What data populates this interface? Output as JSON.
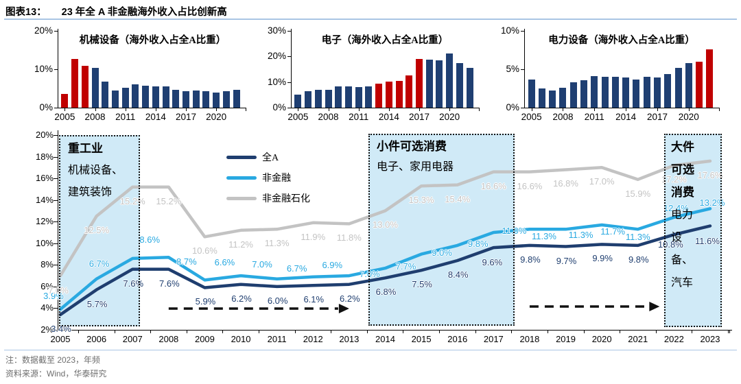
{
  "header": {
    "tag": "图表13：",
    "title": "23 年全 A 非金融海外收入占比创新高"
  },
  "footer": {
    "note": "注：数据截至 2023，年频",
    "source": "资料来源：Wind，华泰研究"
  },
  "colors": {
    "bar": "#1f3f72",
    "highlight": "#c00000",
    "line_allA": "#1f3e6f",
    "line_nonfin": "#29a9e1",
    "line_nonfin_petro": "#c3c3c3",
    "rule": "#a9c5e4",
    "box_fill": "#cfeaf7",
    "arrow": "#111111"
  },
  "chart_data": [
    {
      "id": "machinery",
      "type": "bar",
      "title": "机械设备（海外收入占全A比重）",
      "years": [
        2005,
        2006,
        2007,
        2008,
        2009,
        2010,
        2011,
        2012,
        2013,
        2014,
        2015,
        2016,
        2017,
        2018,
        2019,
        2020,
        2021,
        2022
      ],
      "values": [
        3.5,
        12.7,
        10.9,
        10.3,
        6.8,
        4.4,
        5.2,
        6.0,
        5.7,
        5.6,
        5.5,
        4.6,
        4.2,
        4.5,
        4.3,
        3.9,
        4.2,
        4.7
      ],
      "highlight_years": [
        2005,
        2006,
        2007
      ],
      "ylim": [
        0,
        20
      ],
      "yticks": [
        0,
        10,
        20
      ],
      "xticks": [
        2005,
        2008,
        2011,
        2014,
        2017,
        2020
      ]
    },
    {
      "id": "electronics",
      "type": "bar",
      "title": "电子（海外收入占全A比重）",
      "years": [
        2005,
        2006,
        2007,
        2008,
        2009,
        2010,
        2011,
        2012,
        2013,
        2014,
        2015,
        2016,
        2017,
        2018,
        2019,
        2020,
        2021,
        2022
      ],
      "values": [
        5.0,
        6.3,
        7.0,
        7.0,
        8.2,
        8.4,
        8.0,
        8.4,
        9.4,
        10.2,
        10.5,
        12.5,
        18.9,
        18.7,
        18.4,
        21.2,
        17.4,
        15.5
      ],
      "highlight_years": [
        2013,
        2014,
        2015,
        2016,
        2017
      ],
      "ylim": [
        0,
        30
      ],
      "yticks": [
        0,
        10,
        20,
        30
      ],
      "xticks": [
        2005,
        2008,
        2011,
        2014,
        2017,
        2020
      ]
    },
    {
      "id": "power-equipment",
      "type": "bar",
      "title": "电力设备（海外收入占全A比重）",
      "years": [
        2005,
        2006,
        2007,
        2008,
        2009,
        2010,
        2011,
        2012,
        2013,
        2014,
        2015,
        2016,
        2017,
        2018,
        2019,
        2020,
        2021,
        2022
      ],
      "values": [
        3.7,
        2.5,
        2.2,
        2.6,
        3.3,
        3.6,
        4.1,
        4.0,
        4.0,
        3.9,
        3.7,
        4.0,
        3.9,
        4.4,
        5.2,
        5.8,
        6.0,
        7.6
      ],
      "highlight_years": [
        2021,
        2022
      ],
      "ylim": [
        0,
        10
      ],
      "yticks": [
        0,
        5,
        10
      ],
      "xticks": [
        2005,
        2008,
        2011,
        2014,
        2017,
        2020
      ]
    },
    {
      "id": "overseas-revenue-share",
      "type": "line",
      "years": [
        2005,
        2006,
        2007,
        2008,
        2009,
        2010,
        2011,
        2012,
        2013,
        2014,
        2015,
        2016,
        2017,
        2018,
        2019,
        2020,
        2021,
        2022,
        2023
      ],
      "ylim": [
        2,
        20
      ],
      "ytick_step": 2,
      "series": [
        {
          "name": "全A",
          "color": "#1f3e6f",
          "values": [
            3.4,
            5.7,
            7.6,
            7.6,
            5.9,
            6.2,
            6.0,
            6.1,
            6.2,
            6.8,
            7.5,
            8.4,
            9.6,
            9.8,
            9.7,
            9.9,
            9.8,
            10.8,
            11.6
          ]
        },
        {
          "name": "非金融",
          "color": "#29a9e1",
          "values": [
            3.9,
            6.7,
            8.6,
            8.7,
            6.6,
            7.0,
            6.7,
            6.9,
            7.0,
            7.7,
            9.0,
            9.8,
            11.0,
            11.3,
            11.3,
            11.7,
            11.3,
            12.4,
            13.2
          ]
        },
        {
          "name": "非金融石化",
          "color": "#c3c3c3",
          "values": [
            7.0,
            12.5,
            15.2,
            15.2,
            10.6,
            11.2,
            11.3,
            11.9,
            11.8,
            13.0,
            15.3,
            15.4,
            16.6,
            16.6,
            16.8,
            17.0,
            15.9,
            17.2,
            17.6
          ]
        }
      ],
      "annotations": {
        "boxes": [
          {
            "title": "重工业",
            "body": "机械设备、建筑装饰",
            "year_from": 2005,
            "year_to": 2007
          },
          {
            "title": "小件可选消费",
            "body": "电子、家用电器",
            "year_from": 2013,
            "year_to": 2017
          },
          {
            "title": "大件可选消费",
            "body": "电力设备、汽车",
            "year_from": 2022,
            "year_to": 2023
          }
        ],
        "arrows": [
          {
            "from_year": 2008,
            "to_year": 2013
          },
          {
            "from_year": 2018,
            "to_year": 2021.6
          }
        ]
      }
    }
  ]
}
